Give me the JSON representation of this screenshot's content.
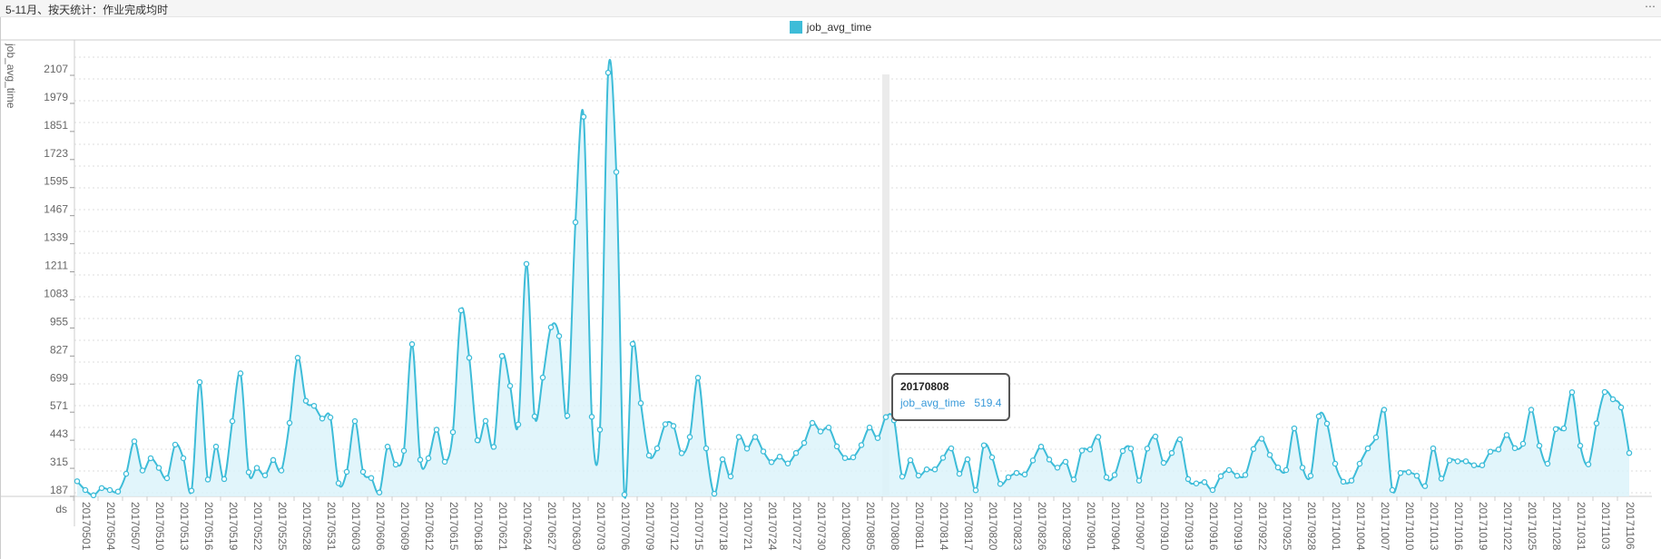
{
  "header": {
    "title": "5-11月、按天统计：作业完成均时",
    "more": "⋯"
  },
  "colors": {
    "series": "#3dbcd8",
    "fill": "#dcf3fa",
    "hover": "#ebebeb"
  },
  "tooltip": {
    "date": "20170808",
    "series": "job_avg_time",
    "value": "519.4"
  },
  "chart_data": {
    "type": "area",
    "title": "5-11月、按天统计：作业完成均时",
    "xlabel": "ds",
    "ylabel": "job_avg_time",
    "legend": [
      "job_avg_time"
    ],
    "legend_position": "top-center",
    "grid": true,
    "ylim": [
      158,
      2107
    ],
    "yticks": [
      187,
      315,
      443,
      571,
      699,
      827,
      955,
      1083,
      1211,
      1339,
      1467,
      1595,
      1723,
      1851,
      1979,
      2107
    ],
    "x_start": "20170501",
    "x_end": "20171107",
    "x_label_every": 3,
    "series": [
      {
        "name": "job_avg_time",
        "values": [
          227,
          187,
          163,
          196,
          187,
          180,
          261,
          409,
          276,
          332,
          288,
          241,
          394,
          332,
          184,
          679,
          235,
          385,
          237,
          501,
          719,
          268,
          288,
          254,
          324,
          276,
          493,
          790,
          594,
          571,
          513,
          518,
          218,
          270,
          501,
          270,
          242,
          176,
          385,
          303,
          366,
          852,
          325,
          332,
          462,
          316,
          451,
          1006,
          790,
          414,
          502,
          384,
          798,
          662,
          486,
          1218,
          523,
          700,
          929,
          889,
          526,
          1408,
          1889,
          521,
          462,
          2090,
          1637,
          166,
          853,
          583,
          345,
          377,
          487,
          479,
          355,
          429,
          699,
          377,
          170,
          327,
          249,
          429,
          376,
          429,
          363,
          314,
          339,
          308,
          356,
          402,
          493,
          454,
          472,
          386,
          333,
          336,
          392,
          472,
          424,
          519.4,
          505,
          248,
          323,
          253,
          281,
          281,
          334,
          377,
          261,
          327,
          186,
          391,
          336,
          215,
          245,
          265,
          258,
          322,
          385,
          326,
          289,
          316,
          235,
          367,
          372,
          429,
          245,
          256,
          365,
          376,
          230,
          376,
          431,
          311,
          356,
          418,
          237,
          217,
          223,
          187,
          250,
          278,
          252,
          256,
          374,
          421,
          347,
          290,
          278,
          468,
          289,
          252,
          523,
          490,
          307,
          225,
          230,
          307,
          377,
          427,
          553,
          187,
          265,
          268,
          252,
          205,
          377,
          239,
          322,
          318,
          318,
          300,
          300,
          362,
          372,
          438,
          378,
          398,
          553,
          389,
          307,
          465,
          468,
          633,
          389,
          304,
          491,
          634,
          601,
          564,
          356
        ]
      }
    ],
    "highlighted": {
      "x": "20170808",
      "value": 519.4
    }
  }
}
